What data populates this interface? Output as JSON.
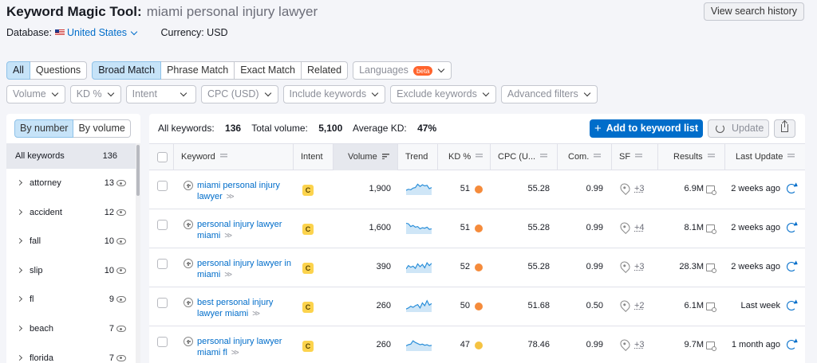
{
  "header": {
    "title": "Keyword Magic Tool:",
    "query": "miami personal injury lawyer",
    "history_button": "View search history",
    "database_label": "Database:",
    "database_value": "United States",
    "currency_label": "Currency: USD"
  },
  "filters": {
    "scope_tabs": [
      "All",
      "Questions"
    ],
    "match_tabs": [
      "Broad Match",
      "Phrase Match",
      "Exact Match",
      "Related"
    ],
    "languages": "Languages",
    "beta": "beta",
    "volume": "Volume",
    "kd": "KD %",
    "intent": "Intent",
    "cpc": "CPC (USD)",
    "include": "Include keywords",
    "exclude": "Exclude keywords",
    "advanced": "Advanced filters"
  },
  "sidebar": {
    "by_number": "By number",
    "by_volume": "By volume",
    "all_label": "All keywords",
    "all_count": "136",
    "groups": [
      {
        "label": "attorney",
        "count": "13"
      },
      {
        "label": "accident",
        "count": "12"
      },
      {
        "label": "fall",
        "count": "10"
      },
      {
        "label": "slip",
        "count": "10"
      },
      {
        "label": "fl",
        "count": "9"
      },
      {
        "label": "beach",
        "count": "7"
      },
      {
        "label": "florida",
        "count": "7"
      }
    ]
  },
  "summary": {
    "all_label": "All keywords:",
    "all_value": "136",
    "volume_label": "Total volume:",
    "volume_value": "5,100",
    "kd_label": "Average KD:",
    "kd_value": "47%"
  },
  "toolbar": {
    "add": "Add to keyword list",
    "update": "Update"
  },
  "table": {
    "headers": {
      "keyword": "Keyword",
      "intent": "Intent",
      "volume": "Volume",
      "trend": "Trend",
      "kd": "KD %",
      "cpc": "CPC (U...",
      "com": "Com.",
      "sf": "SF",
      "results": "Results",
      "last_update": "Last Update"
    },
    "rows": [
      {
        "keyword": "miami personal injury lawyer",
        "intent": "C",
        "volume": "1,900",
        "kd": "51",
        "kd_color": "#f58b3b",
        "cpc": "55.28",
        "com": "0.99",
        "sf": "+3",
        "results": "6.9M",
        "updated": "2 weeks ago",
        "trend": [
          0.35,
          0.45,
          0.4,
          0.55,
          0.6,
          0.9,
          0.7,
          0.85,
          0.75,
          0.8,
          0.5,
          0.6
        ]
      },
      {
        "keyword": "personal injury lawyer miami",
        "intent": "C",
        "volume": "1,600",
        "kd": "51",
        "kd_color": "#f58b3b",
        "cpc": "55.28",
        "com": "0.99",
        "sf": "+4",
        "results": "8.1M",
        "updated": "2 weeks ago",
        "trend": [
          0.9,
          0.85,
          0.6,
          0.7,
          0.55,
          0.6,
          0.4,
          0.5,
          0.45,
          0.55,
          0.35,
          0.4
        ]
      },
      {
        "keyword": "personal injury lawyer in miami",
        "intent": "C",
        "volume": "390",
        "kd": "52",
        "kd_color": "#f58b3b",
        "cpc": "55.28",
        "com": "0.99",
        "sf": "+3",
        "results": "28.3M",
        "updated": "2 weeks ago",
        "trend": [
          0.3,
          0.6,
          0.45,
          0.55,
          0.35,
          0.75,
          0.5,
          0.7,
          0.4,
          0.85,
          0.6,
          0.8
        ]
      },
      {
        "keyword": "best personal injury lawyer miami",
        "intent": "C",
        "volume": "260",
        "kd": "50",
        "kd_color": "#f58b3b",
        "cpc": "51.68",
        "com": "0.50",
        "sf": "+2",
        "results": "6.1M",
        "updated": "Last week",
        "trend": [
          0.2,
          0.3,
          0.45,
          0.35,
          0.5,
          0.6,
          0.3,
          0.75,
          0.5,
          0.95,
          0.55,
          0.7
        ]
      },
      {
        "keyword": "personal injury lawyer miami fl",
        "intent": "C",
        "volume": "260",
        "kd": "47",
        "kd_color": "#f5c342",
        "cpc": "78.46",
        "com": "0.99",
        "sf": "+3",
        "results": "9.7M",
        "updated": "1 month ago",
        "trend": [
          0.4,
          0.5,
          0.55,
          0.85,
          0.7,
          0.6,
          0.5,
          0.55,
          0.45,
          0.5,
          0.4,
          0.45
        ]
      }
    ]
  }
}
